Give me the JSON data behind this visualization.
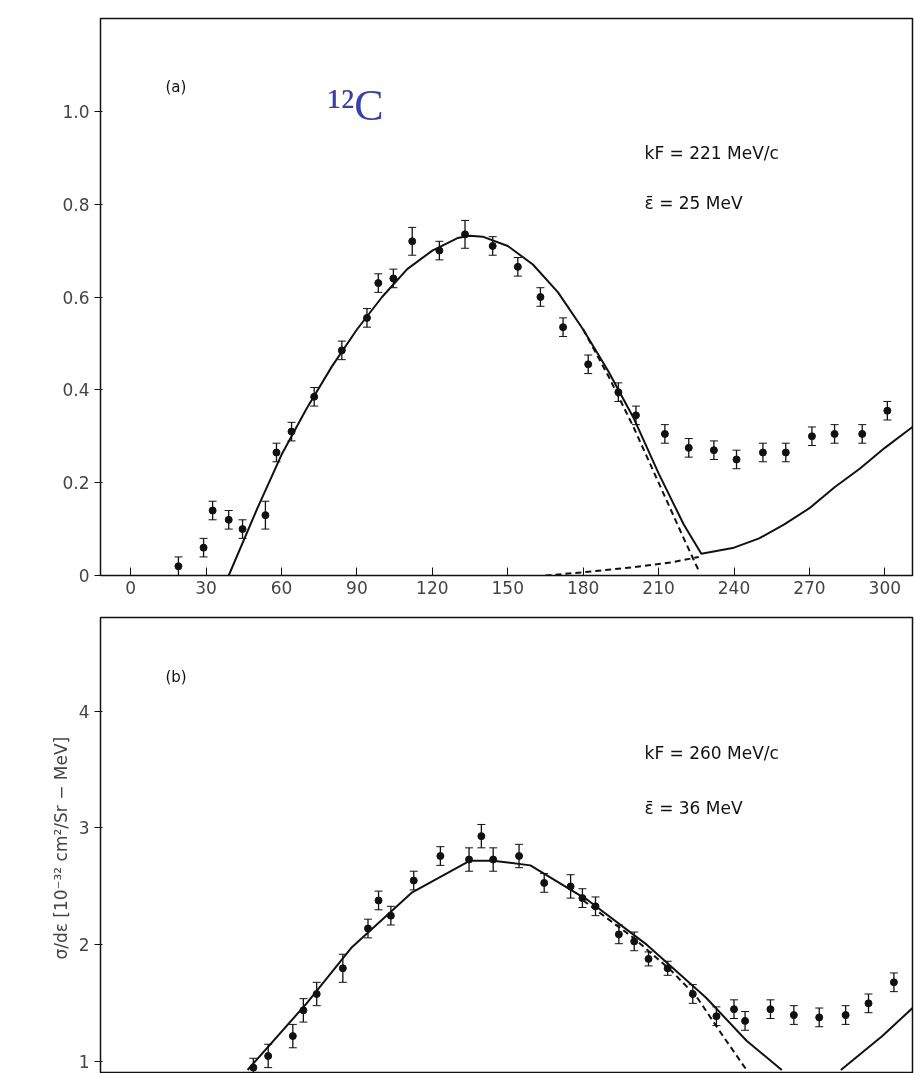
{
  "chart_data": [
    {
      "type": "scatter",
      "annotations": [
        "(a)",
        "¹²C",
        "kF = 221 MeV/c",
        "ε̄ = 25 MeV"
      ],
      "xlim": [
        -12,
        311
      ],
      "ylim": [
        0,
        1.2
      ],
      "xticks": [
        0,
        30,
        60,
        90,
        120,
        150,
        180,
        210,
        240,
        270,
        300
      ],
      "yticks": [
        0,
        0.2,
        0.4,
        0.6,
        0.8,
        {
          "value": 1,
          "label": "1.0"
        }
      ],
      "series": [
        {
          "color": "#111111",
          "marker": "circle",
          "x": [
            19,
            29,
            32.6,
            39,
            44.5,
            53.6,
            58,
            64,
            73,
            84,
            94,
            98.5,
            104.5,
            112,
            122.8,
            133,
            144,
            154,
            163,
            172,
            182,
            194,
            201,
            212.5,
            222,
            232,
            241,
            251.5,
            260.6,
            271,
            280,
            291,
            301
          ],
          "values": [
            0.02,
            0.06,
            0.14,
            0.12,
            0.1,
            0.13,
            0.265,
            0.31,
            0.385,
            0.485,
            0.555,
            0.63,
            0.64,
            0.72,
            0.7,
            0.735,
            0.71,
            0.665,
            0.6,
            0.535,
            0.455,
            0.395,
            0.345,
            0.305,
            0.275,
            0.27,
            0.25,
            0.265,
            0.265,
            0.3,
            0.305,
            0.305,
            0.355
          ],
          "errors": [
            0.02,
            0.02,
            0.02,
            0.02,
            0.02,
            0.03,
            0.02,
            0.02,
            0.02,
            0.02,
            0.02,
            0.02,
            0.02,
            0.03,
            0.02,
            0.03,
            0.02,
            0.02,
            0.02,
            0.02,
            0.02,
            0.02,
            0.02,
            0.02,
            0.02,
            0.02,
            0.02,
            0.02,
            0.02,
            0.02,
            0.02,
            0.02,
            0.02
          ]
        },
        {
          "type": "line",
          "color": "#111111",
          "line_style": "solid",
          "x": [
            39,
            50,
            60,
            70,
            80,
            90,
            100,
            110,
            120,
            130,
            135,
            140,
            150,
            160,
            170,
            180,
            190,
            200,
            210,
            220,
            227,
            240,
            250,
            260,
            270,
            280,
            290,
            300,
            311
          ],
          "values": [
            0,
            0.14,
            0.26,
            0.36,
            0.45,
            0.53,
            0.6,
            0.66,
            0.7,
            0.727,
            0.732,
            0.73,
            0.71,
            0.67,
            0.61,
            0.53,
            0.44,
            0.34,
            0.22,
            0.11,
            0.047,
            0.06,
            0.08,
            0.11,
            0.145,
            0.19,
            0.23,
            0.275,
            0.32
          ]
        },
        {
          "type": "line",
          "color": "#111111",
          "line_style": "dashed",
          "x": [
            180,
            190,
            200,
            210,
            220,
            226
          ],
          "values": [
            0.53,
            0.43,
            0.32,
            0.2,
            0.08,
            0.01
          ]
        },
        {
          "type": "line",
          "color": "#111111",
          "line_style": "dashed",
          "x": [
            165,
            180,
            200,
            215,
            226
          ],
          "values": [
            0,
            0.007,
            0.018,
            0.028,
            0.04
          ]
        }
      ]
    },
    {
      "type": "scatter",
      "annotations": [
        "(b)",
        "kF = 260 MeV/c",
        "ε̄ = 36 MeV"
      ],
      "ylabel": "σ/dε  [10⁻³² cm²/Sr − MeV]",
      "xlim": [
        -12,
        311
      ],
      "ylim": [
        0.9,
        4.8
      ],
      "yticks": [
        1,
        2,
        3,
        4
      ],
      "tick_labels": "y",
      "series": [
        {
          "color": "#111111",
          "marker": "circle",
          "x": [
            48.8,
            54.7,
            64.5,
            68.7,
            74,
            84.4,
            94.4,
            98.6,
            103.5,
            112.6,
            123.2,
            134.6,
            139.5,
            144.2,
            154.5,
            164.5,
            175,
            179.7,
            184.9,
            194.2,
            200.3,
            206,
            213.6,
            223.6,
            233,
            240,
            244.4,
            254.5,
            263.8,
            273.9,
            284.4,
            293.5,
            303.6
          ],
          "values": [
            0.95,
            1.05,
            1.22,
            1.44,
            1.58,
            1.8,
            2.14,
            2.38,
            2.25,
            2.55,
            2.76,
            2.73,
            2.93,
            2.73,
            2.76,
            2.53,
            2.5,
            2.4,
            2.33,
            2.09,
            2.03,
            1.88,
            1.8,
            1.58,
            1.39,
            1.45,
            1.35,
            1.45,
            1.4,
            1.38,
            1.4,
            1.5,
            1.68
          ],
          "errors": [
            0.08,
            0.1,
            0.1,
            0.1,
            0.1,
            0.12,
            0.08,
            0.08,
            0.08,
            0.08,
            0.08,
            0.1,
            0.1,
            0.1,
            0.1,
            0.08,
            0.1,
            0.08,
            0.08,
            0.08,
            0.08,
            0.06,
            0.06,
            0.08,
            0.08,
            0.08,
            0.08,
            0.08,
            0.08,
            0.08,
            0.08,
            0.08,
            0.08
          ]
        },
        {
          "type": "line",
          "color": "#111111",
          "line_style": "solid",
          "x": [
            46.5,
            70,
            88,
            112,
            135,
            144,
            159,
            182,
            205.4,
            228.8,
            245,
            259
          ],
          "values": [
            0.93,
            1.5,
            1.98,
            2.45,
            2.72,
            2.72,
            2.68,
            2.38,
            2.0,
            1.55,
            1.18,
            0.93
          ]
        },
        {
          "type": "line",
          "color": "#111111",
          "line_style": "solid",
          "x": [
            282.5,
            299,
            311
          ],
          "values": [
            0.93,
            1.22,
            1.46
          ]
        },
        {
          "type": "line",
          "color": "#111111",
          "line_style": "dashed",
          "x": [
            180,
            200,
            215,
            225,
            235,
            245
          ],
          "values": [
            2.38,
            2.06,
            1.78,
            1.56,
            1.24,
            0.93
          ]
        }
      ]
    }
  ]
}
